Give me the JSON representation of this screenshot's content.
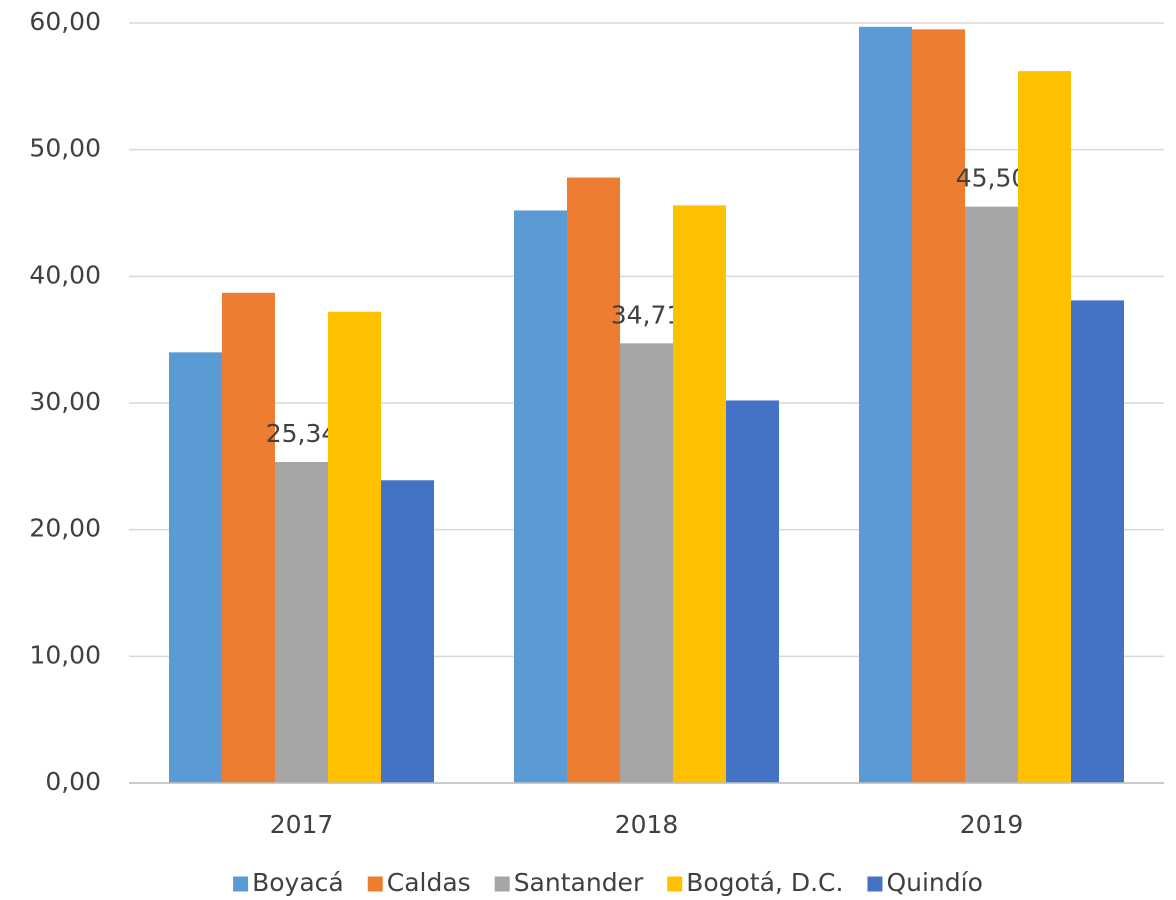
{
  "chart_data": {
    "type": "bar",
    "categories": [
      "2017",
      "2018",
      "2019"
    ],
    "series": [
      {
        "name": "Boyacá",
        "color": "#5b9bd5",
        "values": [
          34.0,
          45.2,
          59.7
        ]
      },
      {
        "name": "Caldas",
        "color": "#ed7d31",
        "values": [
          38.7,
          47.8,
          59.5
        ]
      },
      {
        "name": "Santander",
        "color": "#a5a5a5",
        "values": [
          25.34,
          34.71,
          45.5
        ],
        "value_labels": [
          "25,34",
          "34,71",
          "45,50"
        ]
      },
      {
        "name": "Bogotá, D.C.",
        "color": "#ffc000",
        "values": [
          37.2,
          45.6,
          56.2
        ]
      },
      {
        "name": "Quindío",
        "color": "#4472c4",
        "values": [
          23.9,
          30.2,
          38.1
        ]
      }
    ],
    "ylim": [
      0,
      60
    ],
    "yticks": [
      {
        "value": 0,
        "label": "0,00"
      },
      {
        "value": 10,
        "label": "10,00"
      },
      {
        "value": 20,
        "label": "20,00"
      },
      {
        "value": 30,
        "label": "30,00"
      },
      {
        "value": 40,
        "label": "40,00"
      },
      {
        "value": 50,
        "label": "50,00"
      },
      {
        "value": 60,
        "label": "60,00"
      }
    ],
    "grid": true,
    "legend": "bottom"
  }
}
